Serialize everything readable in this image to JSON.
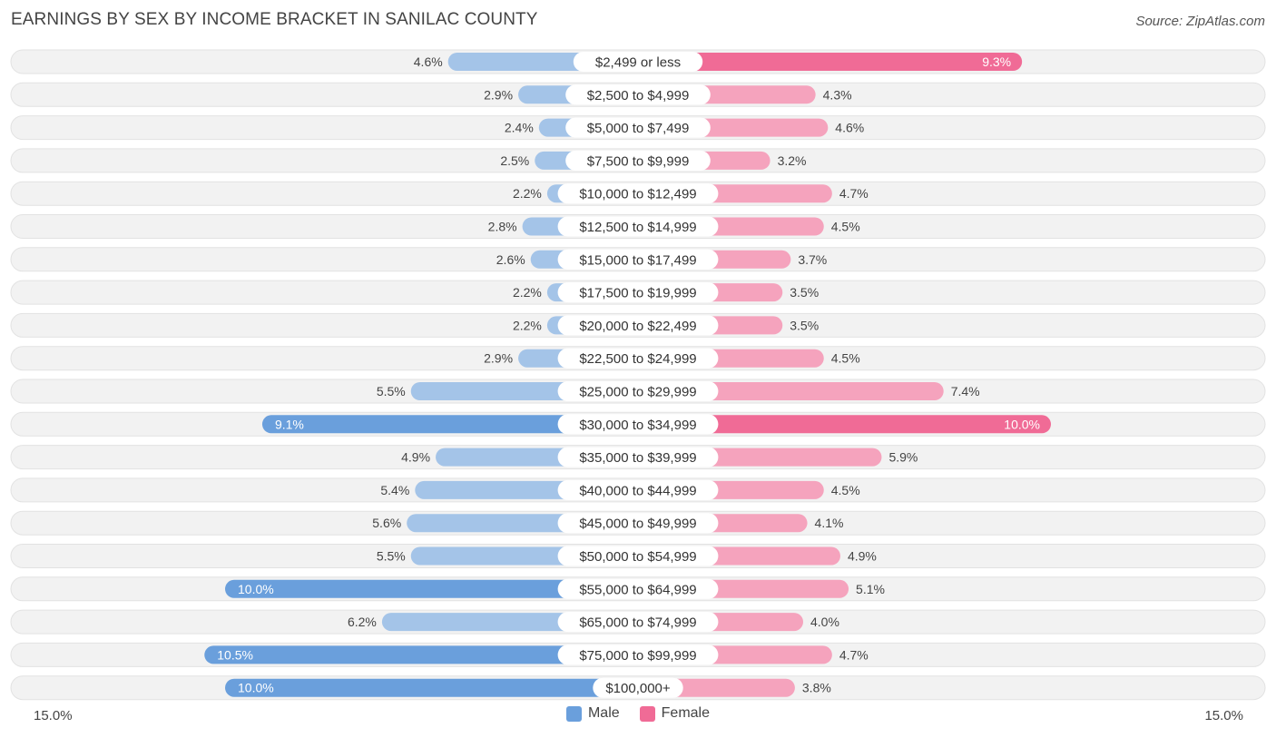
{
  "header": {
    "title": "EARNINGS BY SEX BY INCOME BRACKET IN SANILAC COUNTY",
    "source": "Source: ZipAtlas.com"
  },
  "axis": {
    "left_label": "15.0%",
    "right_label": "15.0%"
  },
  "legend": {
    "male_label": "Male",
    "female_label": "Female"
  },
  "colors": {
    "male": "#a4c4e8",
    "male_strong": "#6a9fdc",
    "female": "#f5a3bd",
    "female_strong": "#f06b96",
    "row_bg": "#f0f0f0"
  },
  "chart_data": {
    "type": "bar",
    "orientation": "horizontal-diverging",
    "title": "EARNINGS BY SEX BY INCOME BRACKET IN SANILAC COUNTY",
    "xlim": [
      -15,
      15
    ],
    "categories": [
      "$2,499 or less",
      "$2,500 to $4,999",
      "$5,000 to $7,499",
      "$7,500 to $9,999",
      "$10,000 to $12,499",
      "$12,500 to $14,999",
      "$15,000 to $17,499",
      "$17,500 to $19,999",
      "$20,000 to $22,499",
      "$22,500 to $24,999",
      "$25,000 to $29,999",
      "$30,000 to $34,999",
      "$35,000 to $39,999",
      "$40,000 to $44,999",
      "$45,000 to $49,999",
      "$50,000 to $54,999",
      "$55,000 to $64,999",
      "$65,000 to $74,999",
      "$75,000 to $99,999",
      "$100,000+"
    ],
    "series": [
      {
        "name": "Male",
        "values": [
          4.6,
          2.9,
          2.4,
          2.5,
          2.2,
          2.8,
          2.6,
          2.2,
          2.2,
          2.9,
          5.5,
          9.1,
          4.9,
          5.4,
          5.6,
          5.5,
          10.0,
          6.2,
          10.5,
          10.0
        ],
        "labels": [
          "4.6%",
          "2.9%",
          "2.4%",
          "2.5%",
          "2.2%",
          "2.8%",
          "2.6%",
          "2.2%",
          "2.2%",
          "2.9%",
          "5.5%",
          "9.1%",
          "4.9%",
          "5.4%",
          "5.6%",
          "5.5%",
          "10.0%",
          "6.2%",
          "10.5%",
          "10.0%"
        ]
      },
      {
        "name": "Female",
        "values": [
          9.3,
          4.3,
          4.6,
          3.2,
          4.7,
          4.5,
          3.7,
          3.5,
          3.5,
          4.5,
          7.4,
          10.0,
          5.9,
          4.5,
          4.1,
          4.9,
          5.1,
          4.0,
          4.7,
          3.8
        ],
        "labels": [
          "9.3%",
          "4.3%",
          "4.6%",
          "3.2%",
          "4.7%",
          "4.5%",
          "3.7%",
          "3.5%",
          "3.5%",
          "4.5%",
          "7.4%",
          "10.0%",
          "5.9%",
          "4.5%",
          "4.1%",
          "4.9%",
          "5.1%",
          "4.0%",
          "4.7%",
          "3.8%"
        ]
      }
    ],
    "units": "%"
  }
}
